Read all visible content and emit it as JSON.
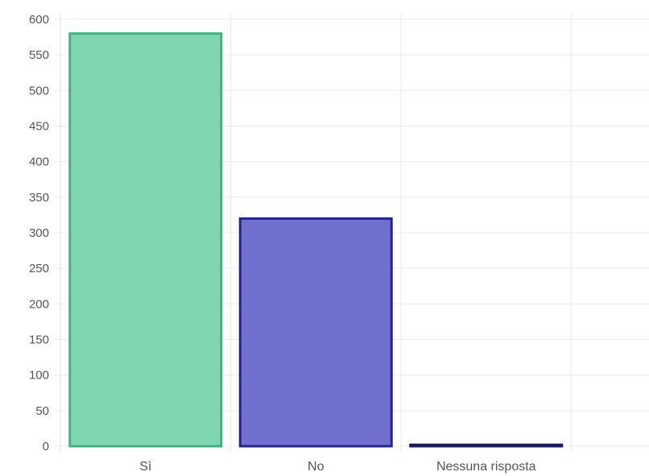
{
  "chart_data": {
    "type": "bar",
    "categories": [
      "Sì",
      "No",
      "Nessuna risposta"
    ],
    "values": [
      580,
      320,
      2
    ],
    "ylim": [
      0,
      600
    ],
    "yticks": [
      0,
      50,
      100,
      150,
      200,
      250,
      300,
      350,
      400,
      450,
      500,
      550,
      600
    ],
    "grid": true,
    "legend": "none",
    "colors": [
      {
        "fill": "#7fd6b0",
        "stroke": "#3fb282"
      },
      {
        "fill": "#7070cf",
        "stroke": "#24248c"
      },
      {
        "fill": "#7070cf",
        "stroke": "#1a1a66"
      }
    ]
  }
}
